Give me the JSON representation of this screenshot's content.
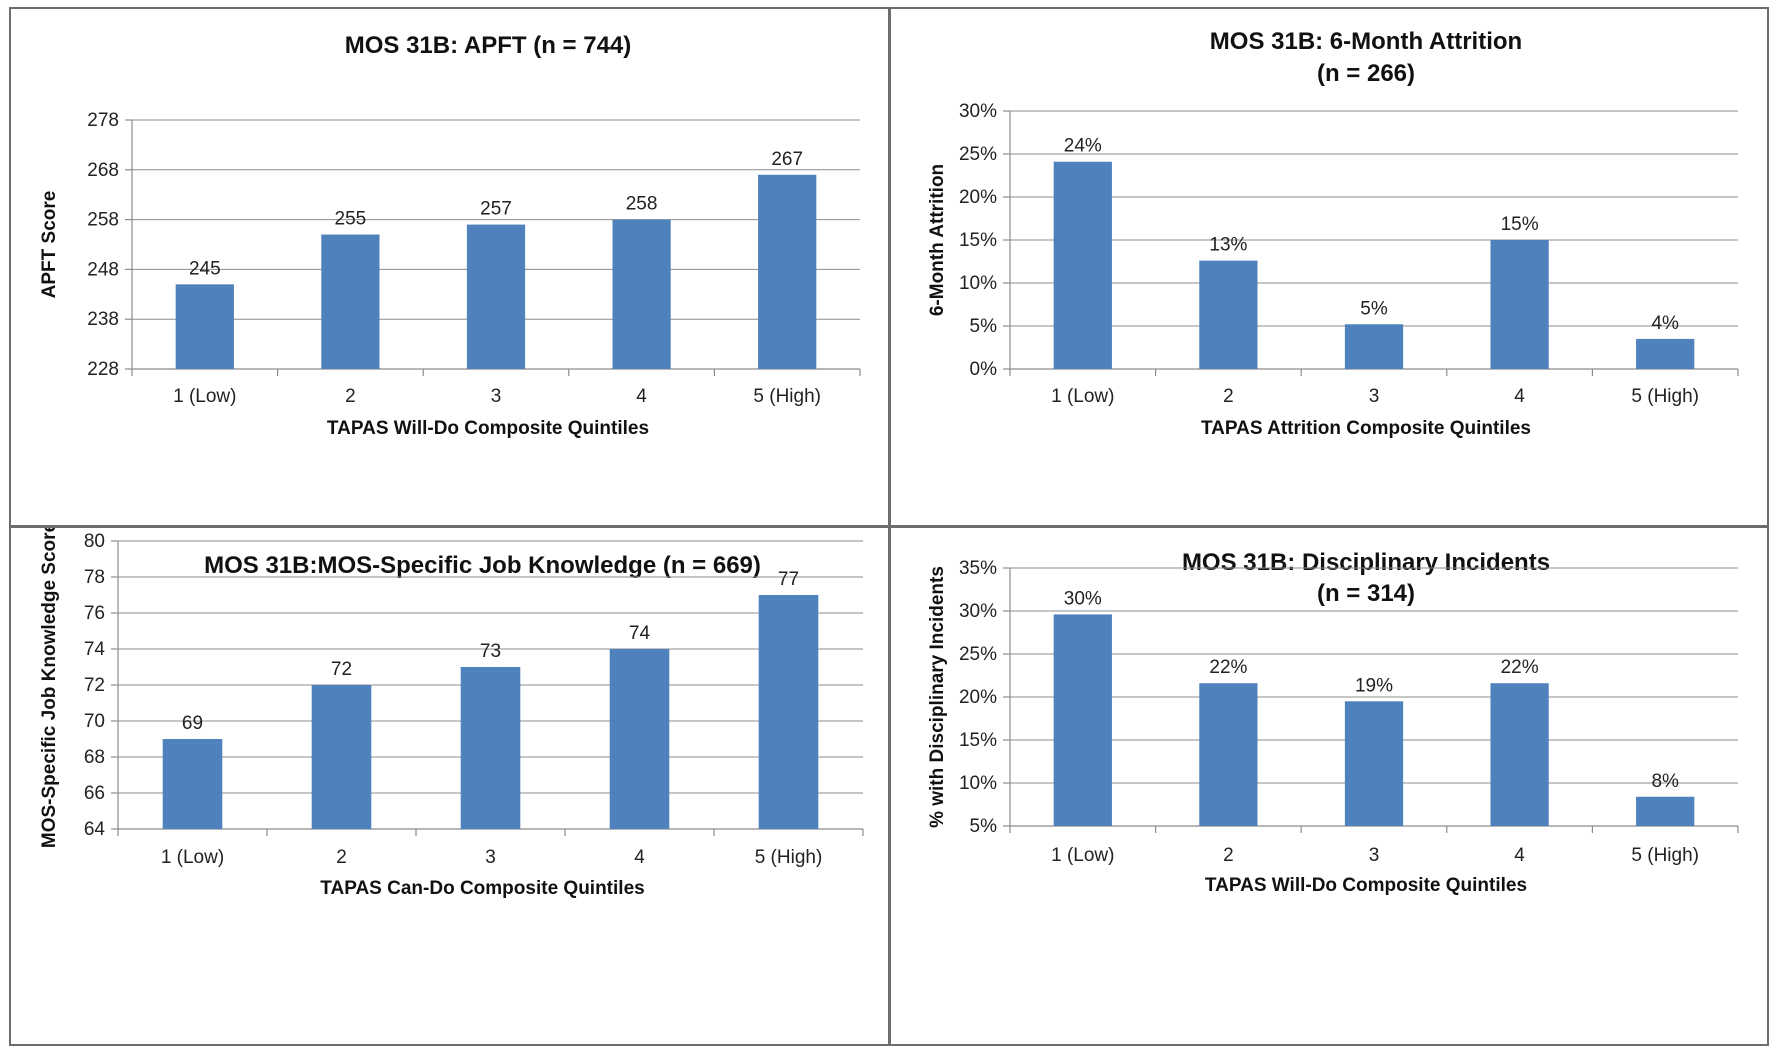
{
  "chart_data": [
    {
      "type": "bar",
      "title": [
        "MOS 31B: APFT (n = 744)"
      ],
      "xlabel": "TAPAS Will-Do Composite Quintiles",
      "ylabel": "APFT Score",
      "categories": [
        "1 (Low)",
        "2",
        "3",
        "4",
        "5 (High)"
      ],
      "values": [
        245,
        255,
        257,
        258,
        267
      ],
      "value_labels": [
        "245",
        "255",
        "257",
        "258",
        "267"
      ],
      "ylim": [
        228,
        278
      ],
      "yticks": [
        228,
        238,
        248,
        258,
        268,
        278
      ],
      "ytick_labels": [
        "228",
        "238",
        "248",
        "258",
        "268",
        "278"
      ],
      "grid": true,
      "bar_color": "#4f81bd"
    },
    {
      "type": "bar",
      "title": [
        "MOS 31B:  6-Month Attrition",
        "(n = 266)"
      ],
      "xlabel": "TAPAS Attrition Composite Quintiles",
      "ylabel": "6-Month Attrition",
      "categories": [
        "1 (Low)",
        "2",
        "3",
        "4",
        "5 (High)"
      ],
      "values": [
        0.241,
        0.126,
        0.052,
        0.15,
        0.035
      ],
      "value_labels": [
        "24%",
        "13%",
        "5%",
        "15%",
        "4%"
      ],
      "ylim": [
        0,
        0.3
      ],
      "yticks": [
        0,
        0.05,
        0.1,
        0.15,
        0.2,
        0.25,
        0.3
      ],
      "ytick_labels": [
        "0%",
        "5%",
        "10%",
        "15%",
        "20%",
        "25%",
        "30%"
      ],
      "grid": true,
      "bar_color": "#4f81bd"
    },
    {
      "type": "bar",
      "title": [
        "MOS 31B:MOS-Specific Job Knowledge (n = 669)"
      ],
      "xlabel": "TAPAS Can-Do Composite Quintiles",
      "ylabel": "MOS-Specific Job Knowledge Score",
      "categories": [
        "1 (Low)",
        "2",
        "3",
        "4",
        "5 (High)"
      ],
      "values": [
        69,
        72,
        73,
        74,
        77
      ],
      "value_labels": [
        "69",
        "72",
        "73",
        "74",
        "77"
      ],
      "ylim": [
        64,
        80
      ],
      "yticks": [
        64,
        66,
        68,
        70,
        72,
        74,
        76,
        78,
        80
      ],
      "ytick_labels": [
        "64",
        "66",
        "68",
        "70",
        "72",
        "74",
        "76",
        "78",
        "80"
      ],
      "grid": true,
      "bar_color": "#4f81bd"
    },
    {
      "type": "bar",
      "title": [
        "MOS 31B: Disciplinary Incidents",
        "(n = 314)"
      ],
      "xlabel": "TAPAS Will-Do Composite Quintiles",
      "ylabel": "% with Disciplinary Incidents",
      "categories": [
        "1 (Low)",
        "2",
        "3",
        "4",
        "5 (High)"
      ],
      "values": [
        0.296,
        0.216,
        0.195,
        0.216,
        0.084
      ],
      "value_labels": [
        "30%",
        "22%",
        "19%",
        "22%",
        "8%"
      ],
      "ylim": [
        0.05,
        0.35
      ],
      "yticks": [
        0.05,
        0.1,
        0.15,
        0.2,
        0.25,
        0.3,
        0.35
      ],
      "ytick_labels": [
        "5%",
        "10%",
        "15%",
        "20%",
        "25%",
        "30%",
        "35%"
      ],
      "grid": true,
      "bar_color": "#4f81bd"
    }
  ]
}
